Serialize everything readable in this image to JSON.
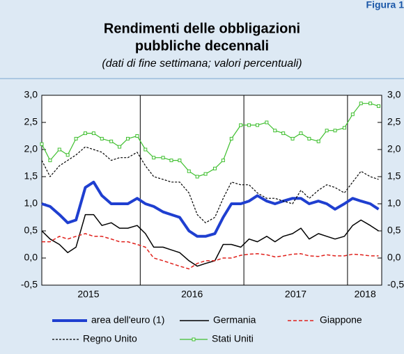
{
  "chart_data": {
    "type": "line",
    "figure_label": "Figura 1",
    "title": [
      "Rendimenti delle obbligazioni",
      "pubbliche decennali"
    ],
    "subtitle": "(dati di fine settimana; valori percentuali)",
    "x": [
      2015.05,
      2015.13,
      2015.22,
      2015.3,
      2015.38,
      2015.47,
      2015.55,
      2015.63,
      2015.72,
      2015.8,
      2015.88,
      2015.97,
      2016.05,
      2016.13,
      2016.22,
      2016.3,
      2016.38,
      2016.47,
      2016.55,
      2016.63,
      2016.72,
      2016.8,
      2016.88,
      2016.97,
      2017.05,
      2017.13,
      2017.22,
      2017.3,
      2017.38,
      2017.47,
      2017.55,
      2017.63,
      2017.72,
      2017.8,
      2017.88,
      2017.97,
      2018.05,
      2018.13,
      2018.22,
      2018.3
    ],
    "xlim": [
      2015.05,
      2018.33
    ],
    "xticks": [
      2016,
      2017,
      2018
    ],
    "x_labels": [
      {
        "value": 2015.5,
        "label": "2015"
      },
      {
        "value": 2016.5,
        "label": "2016"
      },
      {
        "value": 2017.5,
        "label": "2017"
      },
      {
        "value": 2018.17,
        "label": "2018"
      }
    ],
    "ylim": [
      -0.5,
      3.0
    ],
    "yticks": [
      {
        "value": -0.5,
        "label": "-0,5"
      },
      {
        "value": 0,
        "label": "0,0"
      },
      {
        "value": 0.5,
        "label": "0,5"
      },
      {
        "value": 1.0,
        "label": "1,0"
      },
      {
        "value": 1.5,
        "label": "1,5"
      },
      {
        "value": 2.0,
        "label": "2,0"
      },
      {
        "value": 2.5,
        "label": "2,5"
      },
      {
        "value": 3.0,
        "label": "3,0"
      }
    ],
    "legend": "bottom",
    "series": [
      {
        "name": "area dell'euro (1)",
        "color": "#1f3fd0",
        "style": "thick",
        "values": [
          1.0,
          0.95,
          0.8,
          0.65,
          0.7,
          1.3,
          1.4,
          1.15,
          1.0,
          1.0,
          1.0,
          1.1,
          1.0,
          0.95,
          0.85,
          0.8,
          0.75,
          0.5,
          0.4,
          0.4,
          0.45,
          0.75,
          1.0,
          1.0,
          1.05,
          1.15,
          1.05,
          1.0,
          1.05,
          1.1,
          1.1,
          1.0,
          1.05,
          1.0,
          0.9,
          1.0,
          1.1,
          1.05,
          1.0,
          0.9
        ]
      },
      {
        "name": "Germania",
        "color": "#000000",
        "style": "solid",
        "values": [
          0.5,
          0.35,
          0.25,
          0.1,
          0.2,
          0.8,
          0.8,
          0.6,
          0.65,
          0.55,
          0.55,
          0.6,
          0.45,
          0.2,
          0.2,
          0.15,
          0.1,
          -0.05,
          -0.15,
          -0.1,
          -0.05,
          0.25,
          0.25,
          0.2,
          0.35,
          0.3,
          0.4,
          0.3,
          0.4,
          0.45,
          0.55,
          0.35,
          0.45,
          0.4,
          0.35,
          0.4,
          0.6,
          0.7,
          0.6,
          0.5
        ]
      },
      {
        "name": "Giappone",
        "color": "#e0201b",
        "style": "dashed",
        "values": [
          0.3,
          0.3,
          0.4,
          0.35,
          0.4,
          0.45,
          0.4,
          0.4,
          0.35,
          0.3,
          0.3,
          0.25,
          0.2,
          0.0,
          -0.05,
          -0.1,
          -0.15,
          -0.2,
          -0.1,
          -0.05,
          -0.05,
          0.0,
          0.0,
          0.05,
          0.07,
          0.08,
          0.06,
          0.02,
          0.04,
          0.07,
          0.08,
          0.04,
          0.03,
          0.06,
          0.04,
          0.04,
          0.07,
          0.06,
          0.04,
          0.04
        ]
      },
      {
        "name": "Regno Unito",
        "color": "#000000",
        "style": "dotted",
        "values": [
          1.8,
          1.5,
          1.7,
          1.8,
          1.9,
          2.05,
          2.0,
          1.95,
          1.8,
          1.85,
          1.85,
          1.95,
          1.7,
          1.5,
          1.45,
          1.4,
          1.4,
          1.2,
          0.8,
          0.65,
          0.75,
          1.1,
          1.4,
          1.35,
          1.35,
          1.2,
          1.1,
          1.1,
          1.05,
          1.0,
          1.25,
          1.1,
          1.25,
          1.35,
          1.3,
          1.2,
          1.4,
          1.6,
          1.5,
          1.45
        ]
      },
      {
        "name": "Stati Uniti",
        "color": "#3fbf2f",
        "style": "markers",
        "values": [
          2.1,
          1.8,
          2.0,
          1.9,
          2.2,
          2.3,
          2.3,
          2.2,
          2.15,
          2.05,
          2.2,
          2.25,
          2.0,
          1.85,
          1.85,
          1.8,
          1.8,
          1.6,
          1.5,
          1.55,
          1.65,
          1.8,
          2.2,
          2.45,
          2.45,
          2.45,
          2.5,
          2.35,
          2.3,
          2.2,
          2.3,
          2.2,
          2.15,
          2.35,
          2.35,
          2.4,
          2.65,
          2.85,
          2.85,
          2.8
        ]
      }
    ]
  }
}
